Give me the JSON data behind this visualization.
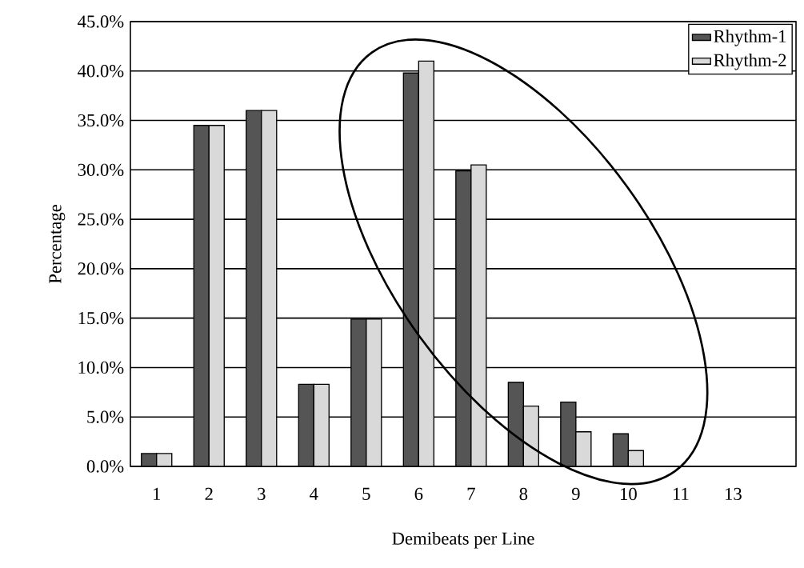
{
  "chart_data": {
    "type": "bar",
    "xlabel": "Demibeats per Line",
    "ylabel": "Percentage",
    "categories": [
      "1",
      "2",
      "3",
      "4",
      "5",
      "6",
      "7",
      "8",
      "9",
      "10",
      "11",
      "13"
    ],
    "series": [
      {
        "name": "Rhythm-1",
        "color": "#555555",
        "values": [
          1.3,
          34.5,
          36.0,
          8.3,
          14.9,
          39.8,
          29.9,
          8.5,
          6.5,
          3.3,
          null,
          null
        ]
      },
      {
        "name": "Rhythm-2",
        "color": "#d9d9d9",
        "values": [
          1.3,
          34.5,
          36.0,
          8.3,
          14.9,
          41.0,
          30.5,
          6.1,
          3.5,
          1.6,
          null,
          null
        ]
      }
    ],
    "ylim": [
      0,
      45
    ],
    "yticks": [
      {
        "value": 0,
        "label": "0.0%"
      },
      {
        "value": 5,
        "label": "5.0%"
      },
      {
        "value": 10,
        "label": "10.0%"
      },
      {
        "value": 15,
        "label": "15.0%"
      },
      {
        "value": 20,
        "label": "20.0%"
      },
      {
        "value": 25,
        "label": "25.0%"
      },
      {
        "value": 30,
        "label": "30.0%"
      },
      {
        "value": 35,
        "label": "35.0%"
      },
      {
        "value": 40,
        "label": "40.0%"
      },
      {
        "value": 45,
        "label": "45.0%"
      }
    ],
    "grid": "y",
    "legend": "top right"
  }
}
